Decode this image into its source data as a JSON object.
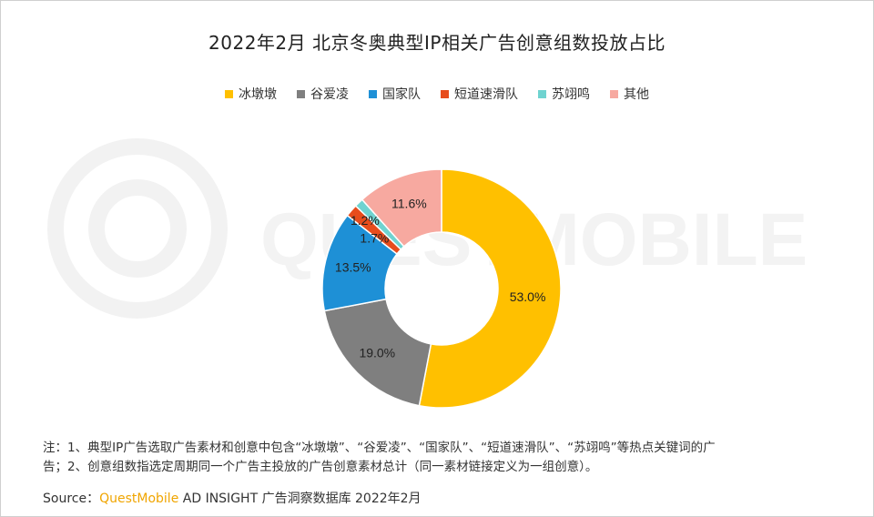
{
  "chart_data": {
    "type": "pie",
    "title": "2022年2月 北京冬奥典型IP相关广告创意组数投放占比",
    "legend_position": "top",
    "donut": true,
    "categories": [
      "冰墩墩",
      "谷爱凌",
      "国家队",
      "短道速滑队",
      "苏翊鸣",
      "其他"
    ],
    "values": [
      53.0,
      19.0,
      13.5,
      1.7,
      1.2,
      11.6
    ],
    "labels": [
      "53.0%",
      "19.0%",
      "13.5%",
      "1.7%",
      "1.2%",
      "11.6%"
    ],
    "colors": [
      "#FFC000",
      "#7F7F7F",
      "#1E90D6",
      "#E74C1C",
      "#6FD3D0",
      "#F7A9A0"
    ]
  },
  "watermark": "QUESTMOBILE",
  "note": {
    "line1": "注：1、典型IP广告选取广告素材和创意中包含“冰墩墩”、“谷爱凌”、“国家队”、“短道速滑队”、“苏翊鸣”等热点关键词的广",
    "line2": "告；2、创意组数指选定周期同一个广告主投放的广告创意素材总计（同一素材链接定义为一组创意）。"
  },
  "source": {
    "prefix": "Source：",
    "brand": "QuestMobile",
    "suffix": " AD INSIGHT 广告洞察数据库 2022年2月"
  }
}
